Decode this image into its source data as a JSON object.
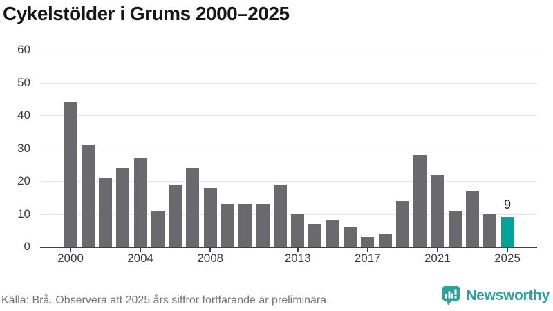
{
  "title": "Cykelstölder i Grums 2000–2025",
  "footer": {
    "source_note": "Källa: Brå. Observera att 2025 års siffror fortfarande är preliminära."
  },
  "branding": {
    "logo_text": "Newsworthy"
  },
  "chart_data": {
    "type": "bar",
    "title": "Cykelstölder i Grums 2000–2025",
    "x": [
      2000,
      2001,
      2002,
      2003,
      2004,
      2005,
      2006,
      2007,
      2008,
      2009,
      2010,
      2011,
      2012,
      2013,
      2014,
      2015,
      2016,
      2017,
      2018,
      2019,
      2020,
      2021,
      2022,
      2023,
      2024,
      2025
    ],
    "values": [
      44,
      31,
      21,
      24,
      27,
      11,
      19,
      24,
      18,
      13,
      13,
      13,
      19,
      10,
      7,
      8,
      6,
      3,
      4,
      14,
      28,
      22,
      11,
      17,
      10,
      9
    ],
    "xlabel": "",
    "ylabel": "",
    "ylim": [
      0,
      60
    ],
    "yticks": [
      0,
      10,
      20,
      30,
      40,
      50,
      60
    ],
    "xtick_labels": [
      2000,
      2004,
      2008,
      2013,
      2017,
      2021,
      2025
    ],
    "grid": true,
    "legend_position": "none",
    "bar_color": "#6a6a6e",
    "highlight_color": "#00a49b",
    "highlight_index": 25,
    "highlight_label": "9"
  }
}
